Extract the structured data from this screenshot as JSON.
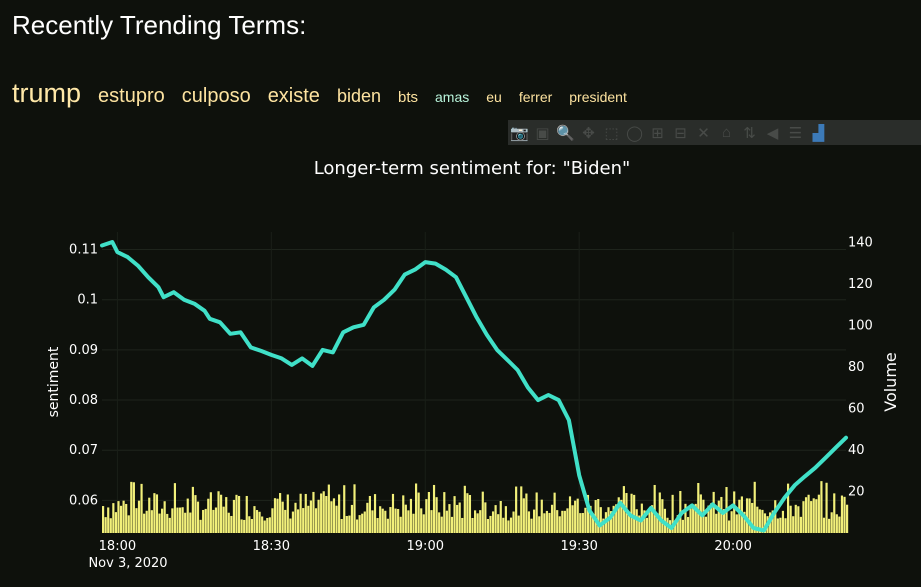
{
  "header": {
    "title": "Recently Trending Terms:",
    "terms": [
      {
        "label": "trump",
        "color": "#ffe8a8",
        "weight": 1.0
      },
      {
        "label": "estupro",
        "color": "#fde3a0",
        "weight": 0.55
      },
      {
        "label": "culposo",
        "color": "#fde3a0",
        "weight": 0.55
      },
      {
        "label": "existe",
        "color": "#fde3a0",
        "weight": 0.55
      },
      {
        "label": "biden",
        "color": "#fde3a0",
        "weight": 0.42
      },
      {
        "label": "bts",
        "color": "#fde3a0",
        "weight": 0.28
      },
      {
        "label": "amas",
        "color": "#b9f5dc",
        "weight": 0.16
      },
      {
        "label": "eu",
        "color": "#fde3a0",
        "weight": 0.16
      },
      {
        "label": "ferrer",
        "color": "#fde3a0",
        "weight": 0.16
      },
      {
        "label": "president",
        "color": "#fde3a0",
        "weight": 0.16
      }
    ]
  },
  "modebar": {
    "buttons": [
      {
        "name": "camera-icon",
        "glyph": "📷"
      },
      {
        "name": "save-icon",
        "glyph": "▣"
      },
      {
        "name": "zoom-icon",
        "glyph": "🔍"
      },
      {
        "name": "pan-icon",
        "glyph": "✥"
      },
      {
        "name": "box-select-icon",
        "glyph": "⬚"
      },
      {
        "name": "lasso-select-icon",
        "glyph": "◯"
      },
      {
        "name": "zoom-in-icon",
        "glyph": "⊞"
      },
      {
        "name": "zoom-out-icon",
        "glyph": "⊟"
      },
      {
        "name": "autoscale-icon",
        "glyph": "✕"
      },
      {
        "name": "reset-axes-icon",
        "glyph": "⌂"
      },
      {
        "name": "spike-lines-icon",
        "glyph": "⇅"
      },
      {
        "name": "hover-closest-icon",
        "glyph": "◀"
      },
      {
        "name": "hover-compare-icon",
        "glyph": "☰"
      },
      {
        "name": "plotly-logo-icon",
        "glyph": "▟"
      }
    ]
  },
  "colors": {
    "line": "#40e0c8",
    "bars": "#f2f07a",
    "background": "#0e110c",
    "text": "#ffffff"
  },
  "chart_data": {
    "type": "line",
    "title": "Longer-term sentiment for: \"Biden\"",
    "ylabel": "sentiment",
    "y2label": "Volume",
    "x_ticks": [
      "18:00",
      "18:30",
      "19:00",
      "19:30",
      "20:00"
    ],
    "x_date_label": "Nov 3, 2020",
    "y_ticks": [
      0.06,
      0.07,
      0.08,
      0.09,
      0.1,
      0.11
    ],
    "y_tick_labels": [
      "0.06",
      "0.07",
      "0.08",
      "0.09",
      "0.1",
      "0.11"
    ],
    "y2_ticks": [
      20,
      40,
      60,
      80,
      100,
      120,
      140
    ],
    "y_range": [
      0.0535,
      0.1135
    ],
    "y2_range": [
      0,
      145
    ],
    "x_range": [
      "17:57",
      "20:22"
    ],
    "series": [
      {
        "type": "line",
        "axis": "y",
        "points": [
          [
            "17:57",
            0.1108
          ],
          [
            "17:59",
            0.1115
          ],
          [
            "18:00",
            0.1095
          ],
          [
            "18:02",
            0.1085
          ],
          [
            "18:04",
            0.1068
          ],
          [
            "18:06",
            0.1045
          ],
          [
            "18:08",
            0.1025
          ],
          [
            "18:09",
            0.1005
          ],
          [
            "18:11",
            0.1015
          ],
          [
            "18:13",
            0.1
          ],
          [
            "18:15",
            0.0992
          ],
          [
            "18:17",
            0.0978
          ],
          [
            "18:18",
            0.0962
          ],
          [
            "18:20",
            0.0955
          ],
          [
            "18:22",
            0.0932
          ],
          [
            "18:24",
            0.0935
          ],
          [
            "18:26",
            0.0905
          ],
          [
            "18:28",
            0.0898
          ],
          [
            "18:30",
            0.089
          ],
          [
            "18:32",
            0.0883
          ],
          [
            "18:34",
            0.087
          ],
          [
            "18:36",
            0.0883
          ],
          [
            "18:38",
            0.0868
          ],
          [
            "18:40",
            0.09
          ],
          [
            "18:42",
            0.0895
          ],
          [
            "18:44",
            0.0935
          ],
          [
            "18:46",
            0.0945
          ],
          [
            "18:48",
            0.095
          ],
          [
            "18:50",
            0.0985
          ],
          [
            "18:52",
            0.1
          ],
          [
            "18:54",
            0.102
          ],
          [
            "18:56",
            0.105
          ],
          [
            "18:58",
            0.106
          ],
          [
            "19:00",
            0.1075
          ],
          [
            "19:02",
            0.1072
          ],
          [
            "19:04",
            0.106
          ],
          [
            "19:06",
            0.1045
          ],
          [
            "19:08",
            0.1005
          ],
          [
            "19:10",
            0.0965
          ],
          [
            "19:12",
            0.093
          ],
          [
            "19:14",
            0.09
          ],
          [
            "19:16",
            0.088
          ],
          [
            "19:18",
            0.086
          ],
          [
            "19:20",
            0.0825
          ],
          [
            "19:22",
            0.08
          ],
          [
            "19:24",
            0.081
          ],
          [
            "19:26",
            0.08
          ],
          [
            "19:28",
            0.076
          ],
          [
            "19:30",
            0.065
          ],
          [
            "19:32",
            0.058
          ],
          [
            "19:34",
            0.055
          ],
          [
            "19:36",
            0.0565
          ],
          [
            "19:38",
            0.0595
          ],
          [
            "19:40",
            0.057
          ],
          [
            "19:42",
            0.056
          ],
          [
            "19:44",
            0.0585
          ],
          [
            "19:46",
            0.056
          ],
          [
            "19:48",
            0.0545
          ],
          [
            "19:50",
            0.0575
          ],
          [
            "19:52",
            0.059
          ],
          [
            "19:54",
            0.057
          ],
          [
            "19:56",
            0.0592
          ],
          [
            "19:58",
            0.0575
          ],
          [
            "20:00",
            0.059
          ],
          [
            "20:02",
            0.057
          ],
          [
            "20:04",
            0.0545
          ],
          [
            "20:06",
            0.054
          ],
          [
            "20:08",
            0.0575
          ],
          [
            "20:10",
            0.0605
          ],
          [
            "20:12",
            0.063
          ],
          [
            "20:14",
            0.0648
          ],
          [
            "20:16",
            0.0665
          ],
          [
            "20:18",
            0.0685
          ],
          [
            "20:20",
            0.0705
          ],
          [
            "20:22",
            0.0725
          ]
        ]
      },
      {
        "type": "bar",
        "axis": "y2",
        "interval_minutes": 0.5,
        "volume_range": [
          6,
          25
        ],
        "description_values": "one bar per 30s bucket between 17:57 and 20:22; most bars 10-20"
      }
    ]
  }
}
